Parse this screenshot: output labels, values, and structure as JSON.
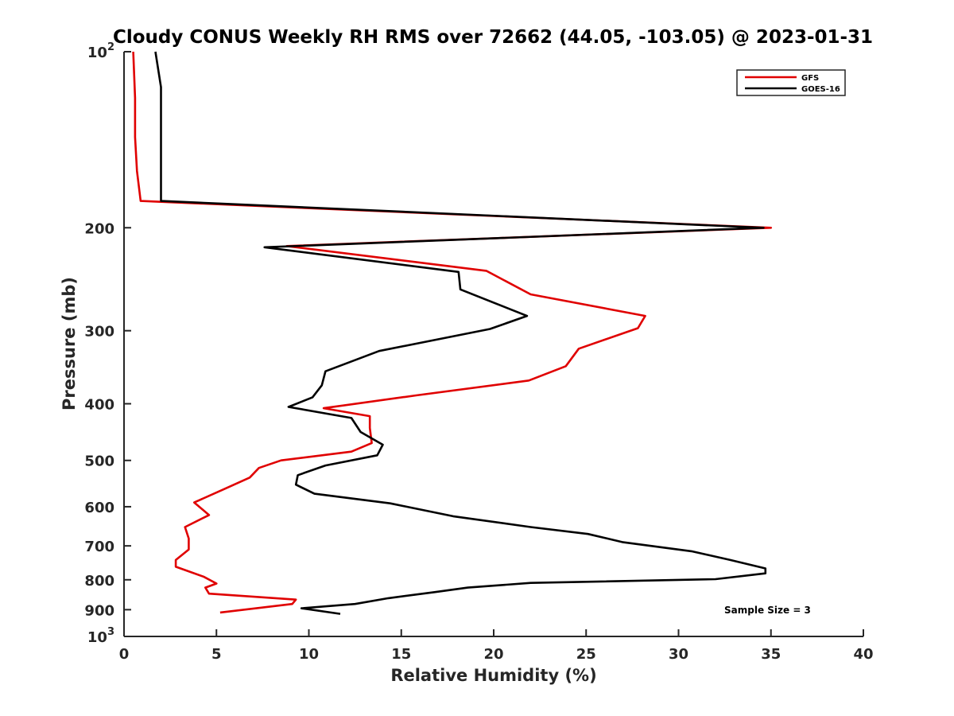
{
  "chart_data": {
    "type": "line",
    "title": "Cloudy CONUS Weekly RH RMS over 72662 (44.05, -103.05) @ 2023-01-31",
    "xlabel": "Relative Humidity (%)",
    "ylabel": "Pressure (mb)",
    "xlim": [
      0,
      40
    ],
    "ylim": [
      100,
      1000
    ],
    "yscale": "log",
    "y_reversed": true,
    "grid": false,
    "legend_position": "top-right",
    "annotation": "Sample Size = 3",
    "x_ticks": [
      "0",
      "5",
      "10",
      "15",
      "20",
      "25",
      "30",
      "35",
      "40"
    ],
    "y_ticks": [
      {
        "value": 100,
        "base": "10",
        "exp": "2"
      },
      {
        "value": 200,
        "label": "200"
      },
      {
        "value": 300,
        "label": "300"
      },
      {
        "value": 400,
        "label": "400"
      },
      {
        "value": 500,
        "label": "500"
      },
      {
        "value": 600,
        "label": "600"
      },
      {
        "value": 700,
        "label": "700"
      },
      {
        "value": 800,
        "label": "800"
      },
      {
        "value": 900,
        "label": "900"
      },
      {
        "value": 1000,
        "base": "10",
        "exp": "3"
      }
    ],
    "series": [
      {
        "name": "GFS",
        "color": "#e00000",
        "x": [
          0.5,
          0.6,
          0.6,
          0.7,
          0.9,
          35.0,
          8.8,
          19.6,
          22.0,
          28.2,
          27.8,
          24.6,
          23.9,
          21.9,
          15.8,
          10.8,
          13.3,
          13.3,
          13.4,
          12.3,
          8.5,
          7.3,
          6.8,
          5.4,
          3.8,
          4.6,
          3.3,
          3.5,
          3.5,
          2.8,
          2.8,
          4.3,
          5.0,
          4.4,
          4.6,
          9.3,
          9.1,
          5.2
        ],
        "y": [
          100,
          120,
          140,
          160,
          180,
          200,
          215,
          237,
          260,
          283,
          297,
          322,
          345,
          365,
          387,
          407,
          420,
          440,
          467,
          483,
          500,
          515,
          535,
          560,
          590,
          620,
          650,
          680,
          710,
          740,
          760,
          790,
          812,
          825,
          845,
          865,
          880,
          910
        ]
      },
      {
        "name": "GOES-16",
        "color": "#000000",
        "x": [
          1.7,
          2.0,
          2.0,
          2.0,
          2.0,
          34.6,
          7.6,
          18.1,
          18.2,
          21.8,
          19.8,
          13.8,
          10.9,
          10.7,
          10.2,
          8.9,
          12.3,
          12.8,
          14.0,
          13.7,
          10.9,
          9.4,
          9.3,
          10.3,
          14.4,
          17.8,
          22.0,
          25.1,
          27.0,
          30.7,
          32.8,
          34.7,
          34.7,
          32.0,
          22.0,
          18.6,
          16.8,
          14.3,
          12.5,
          9.6,
          11.7
        ],
        "y": [
          100,
          115,
          140,
          160,
          180,
          200,
          216,
          238,
          255,
          283,
          298,
          325,
          352,
          372,
          390,
          405,
          423,
          447,
          470,
          490,
          510,
          530,
          550,
          570,
          592,
          623,
          650,
          668,
          690,
          715,
          740,
          765,
          780,
          798,
          810,
          825,
          840,
          860,
          880,
          895,
          915
        ]
      }
    ]
  }
}
